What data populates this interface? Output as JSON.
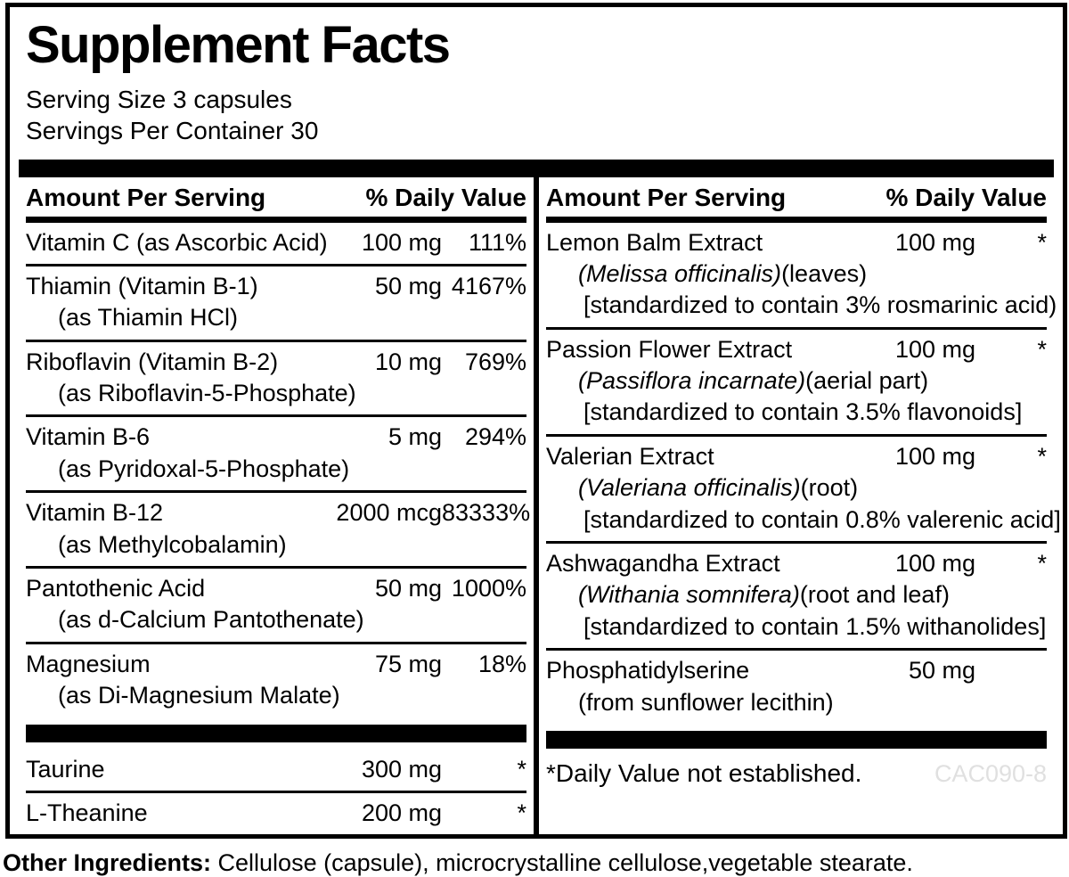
{
  "label": {
    "title": "Supplement Facts",
    "serving_size": "Serving Size 3 capsules",
    "servings_per_container": "Servings Per Container 30",
    "headers": {
      "amount": "Amount Per Serving",
      "daily_value": "% Daily Value"
    },
    "left_rows": [
      {
        "name": "Vitamin C (as Ascorbic Acid)",
        "sub": "",
        "amount": "100 mg",
        "dv": "111%"
      },
      {
        "name": "Thiamin (Vitamin B-1)",
        "sub": "(as Thiamin HCl)",
        "amount": "50 mg",
        "dv": "4167%"
      },
      {
        "name": "Riboflavin (Vitamin B-2)",
        "sub": "(as Riboflavin-5-Phosphate)",
        "amount": "10 mg",
        "dv": "769%"
      },
      {
        "name": "Vitamin B-6",
        "sub": "(as Pyridoxal-5-Phosphate)",
        "amount": "5 mg",
        "dv": "294%"
      },
      {
        "name": "Vitamin B-12",
        "sub": "(as Methylcobalamin)",
        "amount": "2000 mcg",
        "dv": "83333%"
      },
      {
        "name": "Pantothenic Acid",
        "sub": "(as d-Calcium Pantothenate)",
        "amount": "50 mg",
        "dv": "1000%"
      },
      {
        "name": "Magnesium",
        "sub": "(as Di-Magnesium Malate)",
        "amount": "75 mg",
        "dv": "18%"
      },
      {
        "name": "Taurine",
        "sub": "",
        "amount": "300 mg",
        "dv": "*"
      },
      {
        "name": "L-Theanine",
        "sub": "",
        "amount": "200 mg",
        "dv": "*"
      }
    ],
    "right_rows": [
      {
        "name": "Lemon Balm Extract",
        "latin": "(Melissa officinalis)",
        "part": "(leaves)",
        "std": "[standardized to contain 3% rosmarinic acid)",
        "amount": "100 mg",
        "dv": "*"
      },
      {
        "name": "Passion Flower Extract",
        "latin": "(Passiflora incarnate)",
        "part": "(aerial part)",
        "std": "[standardized to contain 3.5% flavonoids]",
        "amount": "100 mg",
        "dv": "*"
      },
      {
        "name": "Valerian Extract",
        "latin": "(Valeriana officinalis)",
        "part": "(root)",
        "std": "[standardized to contain 0.8% valerenic acid]",
        "amount": "100 mg",
        "dv": "*"
      },
      {
        "name": "Ashwagandha Extract",
        "latin": "(Withania somnifera)",
        "part": "(root and leaf)",
        "std": "[standardized to contain 1.5% withanolides]",
        "amount": "100 mg",
        "dv": "*"
      },
      {
        "name": "Phosphatidylserine",
        "sub": "(from sunflower lecithin)",
        "amount": "50 mg",
        "dv": ""
      }
    ],
    "footnote": "*Daily Value not established.",
    "product_code": "CAC090-8",
    "other_ingredients_label": "Other Ingredients:",
    "other_ingredients_text": " Cellulose (capsule), microcrystalline cellulose,vegetable stearate."
  },
  "colors": {
    "ink": "#000000",
    "paper": "#ffffff",
    "product_code_gray": "#e0e0e0"
  }
}
